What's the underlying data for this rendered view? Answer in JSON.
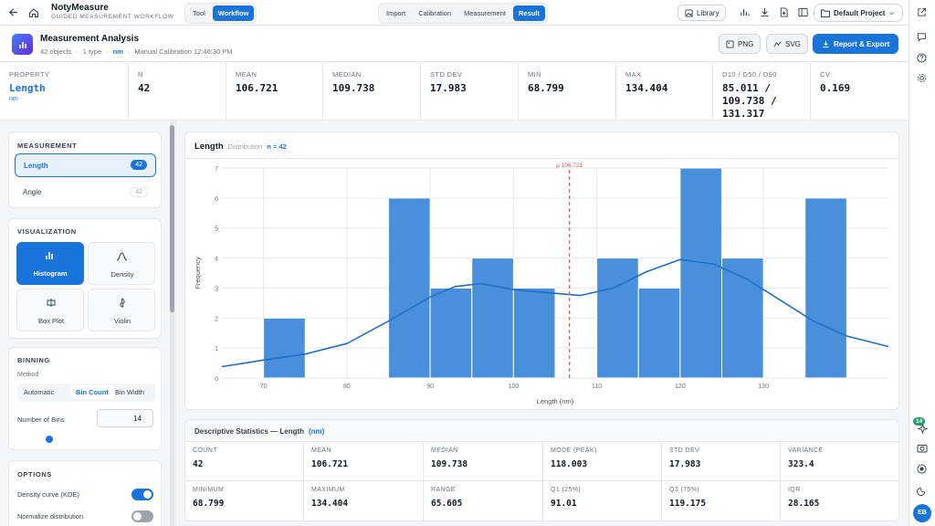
{
  "app": {
    "name": "NotyMeasure",
    "subtitle": "GUIDED MEASUREMENT WORKFLOW"
  },
  "mode_tabs": [
    {
      "label": "Tool"
    },
    {
      "label": "Workflow"
    }
  ],
  "steps": [
    {
      "label": "Import"
    },
    {
      "label": "Calibration"
    },
    {
      "label": "Measurement"
    },
    {
      "label": "Result"
    }
  ],
  "toolbar": {
    "library_label": "Library",
    "project_label": "Default Project"
  },
  "page": {
    "title": "Measurement Analysis",
    "objects": "42 objects",
    "types": "1 type",
    "unit": "nm",
    "calibration": "Manual Calibration 12:46:30 PM",
    "png_label": "PNG",
    "svg_label": "SVG",
    "report_label": "Report & Export"
  },
  "summary": {
    "property_label": "PROPERTY",
    "property_value": "Length",
    "property_unit": "nm",
    "items": [
      {
        "label": "N",
        "value": "42"
      },
      {
        "label": "MEAN",
        "value": "106.721"
      },
      {
        "label": "MEDIAN",
        "value": "109.738"
      },
      {
        "label": "STD DEV",
        "value": "17.983"
      },
      {
        "label": "MIN",
        "value": "68.799"
      },
      {
        "label": "MAX",
        "value": "134.404"
      },
      {
        "label": "D10 / D50 / D90",
        "value": "85.011 / 109.738 / 131.317"
      },
      {
        "label": "CV",
        "value": "0.169"
      }
    ]
  },
  "sidebar": {
    "measurement_title": "MEASUREMENT",
    "measurements": [
      {
        "label": "Length",
        "count": "42"
      },
      {
        "label": "Angle",
        "count": "42"
      }
    ],
    "visualization_title": "VISUALIZATION",
    "viz": [
      {
        "label": "Histogram",
        "icon": "bar-chart-icon"
      },
      {
        "label": "Density",
        "icon": "density-curve-icon"
      },
      {
        "label": "Box Plot",
        "icon": "box-plot-icon"
      },
      {
        "label": "Violin",
        "icon": "violin-icon"
      }
    ],
    "binning_title": "BINNING",
    "method_label": "Method",
    "methods": [
      {
        "label": "Automatic"
      },
      {
        "label": "Bin Count"
      },
      {
        "label": "Bin Width"
      }
    ],
    "bins_label": "Number of Bins",
    "bins_value": "14",
    "options_title": "OPTIONS",
    "options": [
      {
        "label": "Density curve (KDE)",
        "on": true
      },
      {
        "label": "Normalize distribution",
        "on": false
      }
    ]
  },
  "chart_header": {
    "title": "Length",
    "sub": "Distribution",
    "n_label": "n = 42"
  },
  "chart_data": {
    "type": "bar",
    "title": "",
    "xlabel": "Length (nm)",
    "ylabel": "Frequency",
    "xlim": [
      65,
      145
    ],
    "ylim": [
      0,
      7
    ],
    "xticks": [
      70,
      80,
      90,
      100,
      110,
      120,
      130
    ],
    "yticks": [
      0,
      1,
      2,
      3,
      4,
      5,
      6,
      7
    ],
    "bin_edges": [
      70,
      75,
      80,
      85,
      90,
      95,
      100,
      105,
      110,
      115,
      120,
      125,
      130,
      135
    ],
    "values": [
      2,
      0,
      0,
      6,
      3,
      4,
      3,
      0,
      4,
      3,
      7,
      4,
      0,
      6
    ],
    "mean_marker": {
      "value": 106.721,
      "label": "μ 106.721"
    },
    "kde": [
      [
        65,
        0.38
      ],
      [
        70,
        0.6
      ],
      [
        75,
        0.8
      ],
      [
        80,
        1.15
      ],
      [
        85,
        1.9
      ],
      [
        90,
        2.7
      ],
      [
        93,
        3.05
      ],
      [
        96,
        3.15
      ],
      [
        100,
        2.95
      ],
      [
        104,
        2.85
      ],
      [
        108,
        2.75
      ],
      [
        112,
        3.0
      ],
      [
        116,
        3.55
      ],
      [
        120,
        3.95
      ],
      [
        124,
        3.8
      ],
      [
        128,
        3.3
      ],
      [
        132,
        2.6
      ],
      [
        136,
        1.9
      ],
      [
        140,
        1.4
      ],
      [
        145,
        1.05
      ]
    ],
    "grid": true,
    "colors": {
      "bar": "#4a8fdc",
      "bar_edge": "#ffffff",
      "kde": "#1f6fc8",
      "mean": "#e05252"
    }
  },
  "desc_stats": {
    "title": "Descriptive Statistics — Length",
    "unit": "(nm)",
    "cells": [
      {
        "label": "COUNT",
        "value": "42"
      },
      {
        "label": "MEAN",
        "value": "106.721"
      },
      {
        "label": "MEDIAN",
        "value": "109.738"
      },
      {
        "label": "MODE (PEAK)",
        "value": "118.003"
      },
      {
        "label": "STD DEV",
        "value": "17.983"
      },
      {
        "label": "VARIANCE",
        "value": "323.4"
      },
      {
        "label": "MINIMUM",
        "value": "68.799"
      },
      {
        "label": "MAXIMUM",
        "value": "134.404"
      },
      {
        "label": "RANGE",
        "value": "65.605"
      },
      {
        "label": "Q1 (25%)",
        "value": "91.01"
      },
      {
        "label": "Q3 (75%)",
        "value": "119.175"
      },
      {
        "label": "IQR",
        "value": "28.165"
      }
    ]
  },
  "rightrail": {
    "badge": "14",
    "avatar": "EB"
  },
  "colors": {
    "accent": "#1a73d9",
    "toggle_on": "#1a73d9",
    "toggle_off": "#9ca3af"
  }
}
